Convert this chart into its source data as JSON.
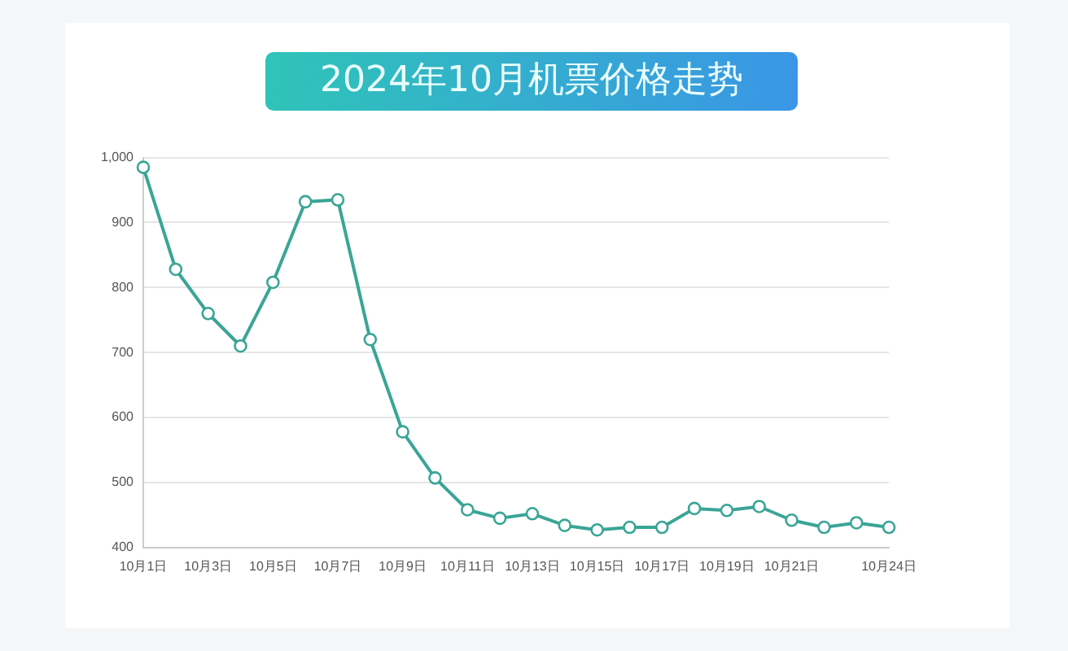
{
  "chart_data": {
    "type": "line",
    "title": "2024年10月机票价格走势",
    "categories": [
      "10月1日",
      null,
      "10月3日",
      null,
      "10月5日",
      null,
      "10月7日",
      null,
      "10月9日",
      null,
      "10月11日",
      null,
      "10月13日",
      null,
      "10月15日",
      null,
      "10月17日",
      null,
      "10月19日",
      null,
      "10月21日",
      null,
      null,
      "10月24日"
    ],
    "series": [
      {
        "color": "#3aa596",
        "values": [
          985,
          828,
          760,
          710,
          808,
          932,
          935,
          720,
          578,
          507,
          458,
          445,
          452,
          434,
          427,
          431,
          431,
          460,
          457,
          463,
          442,
          431,
          438,
          431
        ]
      }
    ],
    "ylim": [
      400,
      1000
    ],
    "yticks": [
      400,
      500,
      600,
      700,
      800,
      900,
      {
        "value": 1000,
        "label": "1,000"
      }
    ],
    "grid": "y",
    "marker": "circle",
    "line_style": "solid"
  }
}
